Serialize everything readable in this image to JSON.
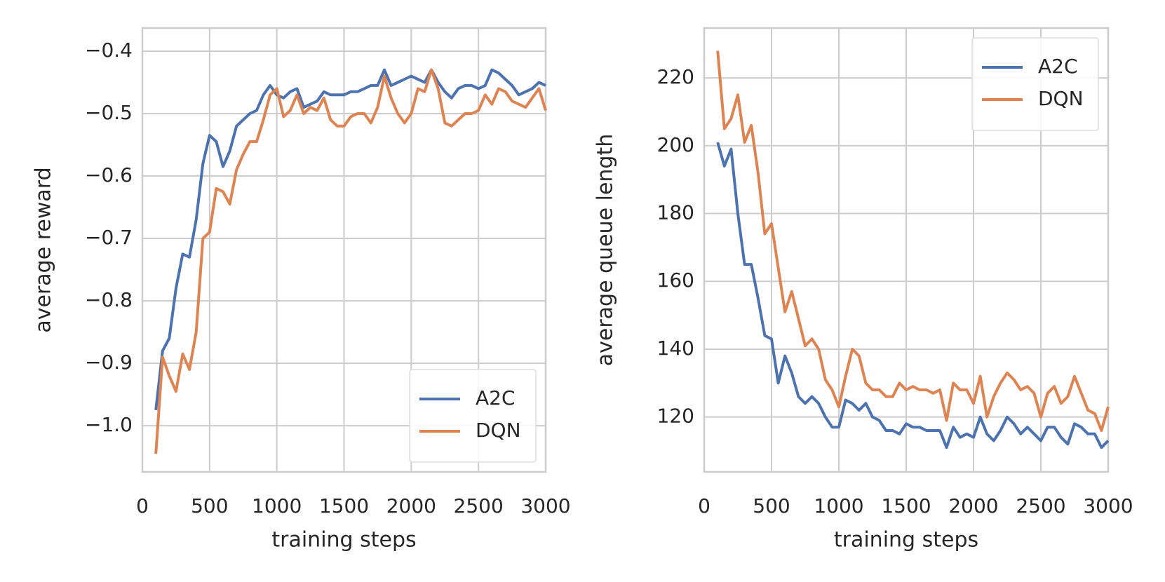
{
  "chart_data": [
    {
      "type": "line",
      "xlabel": "training steps",
      "ylabel": "average reward",
      "x": [
        100,
        150,
        200,
        250,
        300,
        350,
        400,
        450,
        500,
        550,
        600,
        650,
        700,
        750,
        800,
        850,
        900,
        950,
        1000,
        1050,
        1100,
        1150,
        1200,
        1250,
        1300,
        1350,
        1400,
        1450,
        1500,
        1550,
        1600,
        1650,
        1700,
        1750,
        1800,
        1850,
        1900,
        1950,
        2000,
        2050,
        2100,
        2150,
        2200,
        2250,
        2300,
        2350,
        2400,
        2450,
        2500,
        2550,
        2600,
        2650,
        2700,
        2750,
        2800,
        2850,
        2900,
        2950,
        3000
      ],
      "xlim": [
        0,
        3000
      ],
      "xticks": [
        0,
        500,
        1000,
        1500,
        2000,
        2500,
        3000
      ],
      "ylim": [
        -1.074,
        -0.363
      ],
      "yticks": [
        {
          "value": -1.0,
          "label": "−1.0"
        },
        {
          "value": -0.9,
          "label": "−0.9"
        },
        {
          "value": -0.8,
          "label": "−0.8"
        },
        {
          "value": -0.7,
          "label": "−0.7"
        },
        {
          "value": -0.6,
          "label": "−0.6"
        },
        {
          "value": -0.5,
          "label": "−0.5"
        },
        {
          "value": -0.4,
          "label": "−0.4"
        }
      ],
      "grid": true,
      "legend": "lower right",
      "series": [
        {
          "name": "A2C",
          "color": "#4c72b0",
          "values": [
            -0.975,
            -0.88,
            -0.86,
            -0.78,
            -0.725,
            -0.73,
            -0.67,
            -0.58,
            -0.535,
            -0.545,
            -0.585,
            -0.56,
            -0.52,
            -0.51,
            -0.5,
            -0.495,
            -0.47,
            -0.455,
            -0.47,
            -0.475,
            -0.465,
            -0.46,
            -0.49,
            -0.485,
            -0.48,
            -0.465,
            -0.47,
            -0.47,
            -0.47,
            -0.465,
            -0.465,
            -0.46,
            -0.455,
            -0.455,
            -0.43,
            -0.455,
            -0.45,
            -0.445,
            -0.44,
            -0.445,
            -0.45,
            -0.43,
            -0.45,
            -0.465,
            -0.475,
            -0.46,
            -0.455,
            -0.455,
            -0.46,
            -0.455,
            -0.43,
            -0.435,
            -0.445,
            -0.455,
            -0.47,
            -0.465,
            -0.46,
            -0.45,
            -0.455
          ]
        },
        {
          "name": "DQN",
          "color": "#dd8452",
          "values": [
            -1.045,
            -0.89,
            -0.92,
            -0.945,
            -0.885,
            -0.91,
            -0.85,
            -0.7,
            -0.69,
            -0.62,
            -0.625,
            -0.645,
            -0.59,
            -0.565,
            -0.545,
            -0.545,
            -0.51,
            -0.47,
            -0.46,
            -0.505,
            -0.495,
            -0.47,
            -0.5,
            -0.49,
            -0.495,
            -0.475,
            -0.51,
            -0.52,
            -0.52,
            -0.505,
            -0.5,
            -0.5,
            -0.515,
            -0.49,
            -0.44,
            -0.475,
            -0.5,
            -0.515,
            -0.5,
            -0.46,
            -0.465,
            -0.43,
            -0.46,
            -0.515,
            -0.52,
            -0.51,
            -0.5,
            -0.5,
            -0.495,
            -0.47,
            -0.485,
            -0.46,
            -0.465,
            -0.48,
            -0.485,
            -0.49,
            -0.475,
            -0.46,
            -0.495
          ]
        }
      ]
    },
    {
      "type": "line",
      "xlabel": "training steps",
      "ylabel": "average queue length",
      "x": [
        100,
        150,
        200,
        250,
        300,
        350,
        400,
        450,
        500,
        550,
        600,
        650,
        700,
        750,
        800,
        850,
        900,
        950,
        1000,
        1050,
        1100,
        1150,
        1200,
        1250,
        1300,
        1350,
        1400,
        1450,
        1500,
        1550,
        1600,
        1650,
        1700,
        1750,
        1800,
        1850,
        1900,
        1950,
        2000,
        2050,
        2100,
        2150,
        2200,
        2250,
        2300,
        2350,
        2400,
        2450,
        2500,
        2550,
        2600,
        2650,
        2700,
        2750,
        2800,
        2850,
        2900,
        2950,
        3000
      ],
      "xlim": [
        0,
        3000
      ],
      "xticks": [
        0,
        500,
        1000,
        1500,
        2000,
        2500,
        3000
      ],
      "ylim": [
        103.8,
        234.7
      ],
      "yticks": [
        120,
        140,
        160,
        180,
        200,
        220
      ],
      "grid": true,
      "legend": "upper right",
      "series": [
        {
          "name": "A2C",
          "color": "#4c72b0",
          "values": [
            201,
            194,
            199,
            180,
            165,
            165,
            155,
            144,
            143,
            130,
            138,
            133,
            126,
            124,
            126,
            124,
            120,
            117,
            117,
            125,
            124,
            122,
            124,
            120,
            119,
            116,
            116,
            115,
            118,
            117,
            117,
            116,
            116,
            116,
            111,
            117,
            114,
            115,
            114,
            120,
            115,
            113,
            116,
            120,
            118,
            115,
            117,
            115,
            113,
            117,
            117,
            114,
            112,
            118,
            117,
            115,
            115,
            111,
            113
          ]
        },
        {
          "name": "DQN",
          "color": "#dd8452",
          "values": [
            228,
            205,
            208,
            215,
            201,
            206,
            192,
            174,
            177,
            164,
            151,
            157,
            149,
            141,
            143,
            140,
            131,
            128,
            123,
            132,
            140,
            138,
            130,
            128,
            128,
            126,
            126,
            130,
            128,
            129,
            128,
            128,
            127,
            128,
            119,
            130,
            128,
            128,
            124,
            132,
            120,
            126,
            130,
            133,
            131,
            128,
            129,
            127,
            120,
            127,
            129,
            124,
            126,
            132,
            127,
            122,
            121,
            116,
            123
          ]
        }
      ]
    }
  ]
}
